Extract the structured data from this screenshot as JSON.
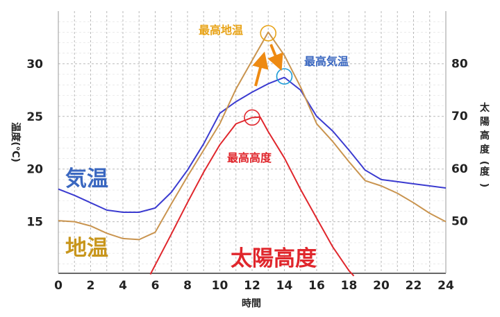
{
  "colors": {
    "air": "#3b3bd0",
    "ground": "#c9944f",
    "sun": "#e0262c",
    "air_label": "#3a67c0",
    "ground_label": "#c8961c",
    "sun_label": "#e0262c",
    "max_ground_label": "#e8a317",
    "arrow": "#ee8a12",
    "grid": "#b9b9b9",
    "air_marker": "#1a9ad6"
  },
  "chart_data": {
    "type": "line",
    "xlabel": "時間",
    "ylabel_left": "温度(℃)",
    "ylabel_right": "太陽高度(度)",
    "xlim": [
      0,
      24
    ],
    "ylim_left": [
      10.1,
      35
    ],
    "ylim_right": [
      40,
      90
    ],
    "x_ticks": [
      "0",
      "2",
      "4",
      "6",
      "8",
      "10",
      "12",
      "14",
      "16",
      "18",
      "20",
      "22",
      "24"
    ],
    "y_left_ticks": [
      "15",
      "20",
      "25",
      "30"
    ],
    "y_right_ticks": [
      "50",
      "60",
      "70",
      "80"
    ],
    "grid": true,
    "series": [
      {
        "name": "気温",
        "axis": "left",
        "x": [
          0,
          1,
          2,
          3,
          4,
          5,
          6,
          7,
          8,
          9,
          10,
          11,
          12,
          13,
          14,
          15,
          16,
          17,
          18,
          19,
          20,
          21,
          22,
          23,
          24
        ],
        "y": [
          18.1,
          17.5,
          16.8,
          16.1,
          15.9,
          15.9,
          16.3,
          17.8,
          19.9,
          22.4,
          25.3,
          26.4,
          27.3,
          28.1,
          28.7,
          27.5,
          25.0,
          23.6,
          21.8,
          19.9,
          19.0,
          18.8,
          18.6,
          18.4,
          18.2
        ]
      },
      {
        "name": "地温",
        "axis": "left",
        "x": [
          0,
          1,
          2,
          3,
          4,
          5,
          6,
          7,
          8,
          9,
          10,
          11,
          12,
          13,
          14,
          15,
          16,
          17,
          18,
          19,
          20,
          21,
          22,
          23,
          24
        ],
        "y": [
          15.1,
          15.0,
          14.6,
          13.9,
          13.4,
          13.3,
          14.0,
          16.7,
          19.3,
          21.8,
          24.3,
          27.6,
          30.3,
          33.0,
          30.8,
          27.8,
          24.3,
          22.6,
          20.7,
          18.9,
          18.4,
          17.7,
          16.8,
          15.8,
          15.0
        ]
      },
      {
        "name": "太陽高度",
        "axis": "right",
        "x": [
          5.7,
          7,
          8,
          9,
          10,
          11,
          12,
          12.5,
          13,
          14,
          15,
          16,
          17,
          18,
          18.3
        ],
        "y": [
          39.8,
          47.5,
          53.5,
          59.3,
          64.5,
          68.5,
          69.7,
          69.8,
          67.0,
          62.0,
          56.0,
          50.5,
          45.0,
          40.5,
          39.5
        ]
      }
    ],
    "annotations": {
      "air_label": "気温",
      "ground_label": "地温",
      "sun_label": "太陽高度",
      "max_ground": "最高地温",
      "max_air": "最高気温",
      "max_sun": "最高高度"
    },
    "markers": [
      {
        "name": "max-ground",
        "x": 13,
        "y": 32.9,
        "axis": "left"
      },
      {
        "name": "max-air",
        "x": 14,
        "y": 28.8,
        "axis": "left"
      },
      {
        "name": "max-sun",
        "x": 12,
        "y": 69.7,
        "axis": "right"
      }
    ]
  }
}
